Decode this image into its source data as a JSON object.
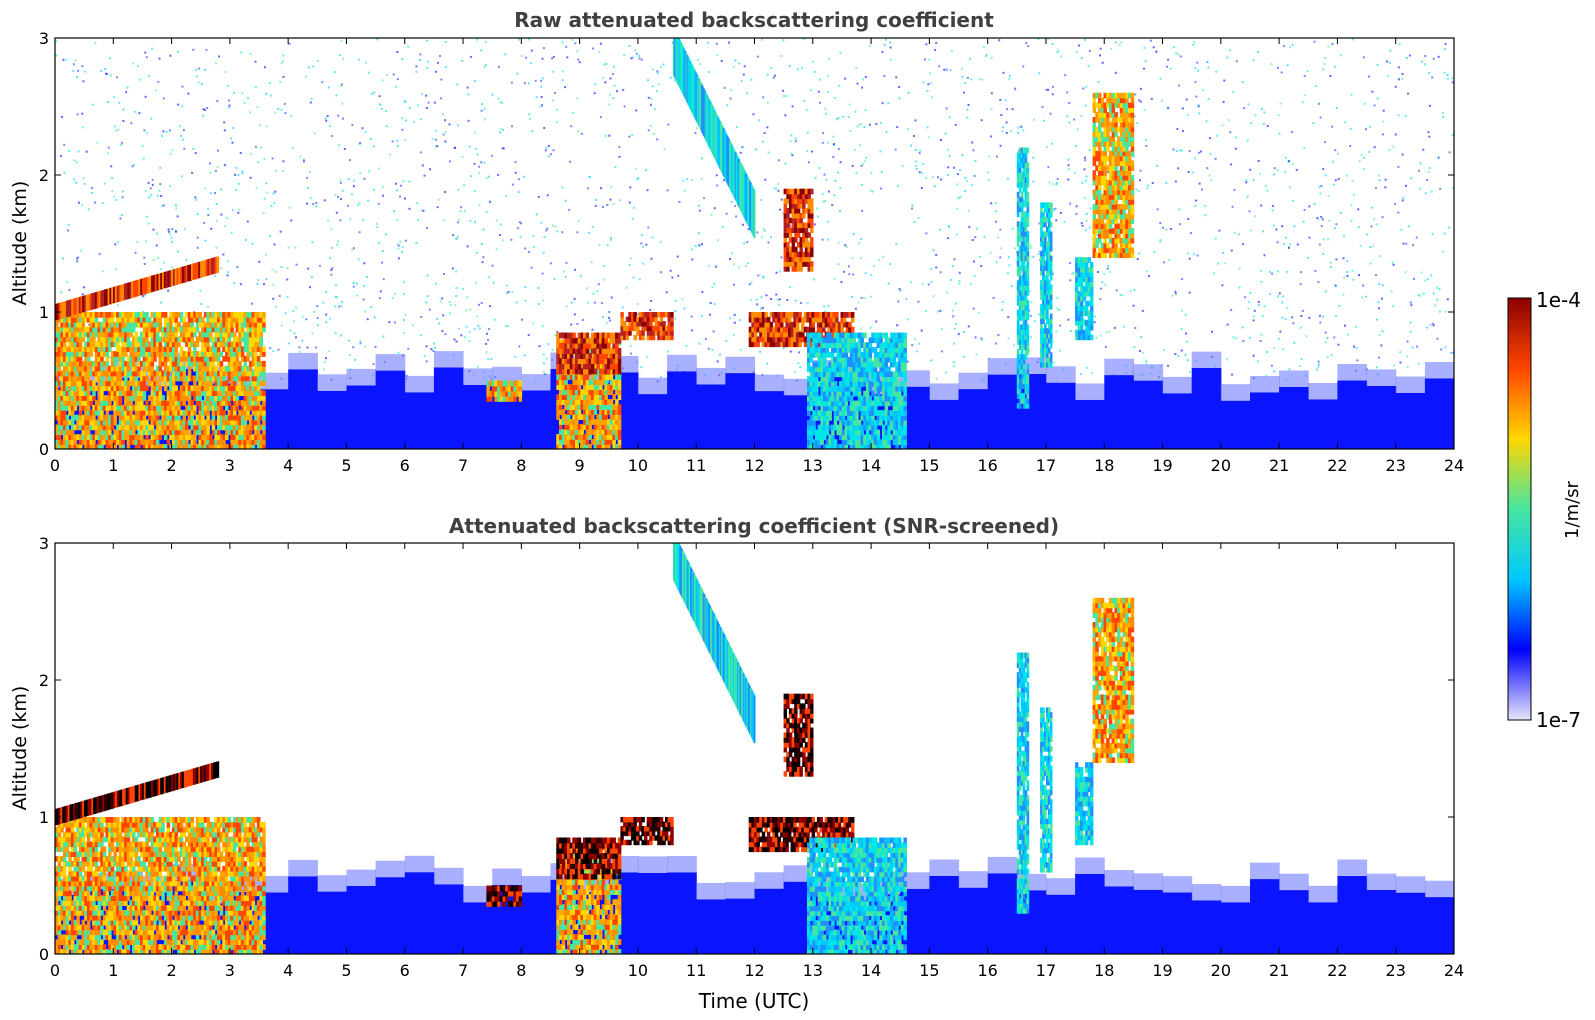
{
  "chart_data": [
    {
      "type": "heatmap",
      "title": "Raw attenuated backscattering coefficient",
      "xlabel": "",
      "ylabel": "Altitude (km)",
      "xlim": [
        0,
        24
      ],
      "ylim": [
        0,
        3
      ],
      "x_ticks": [
        "0",
        "1",
        "2",
        "3",
        "4",
        "5",
        "6",
        "7",
        "8",
        "9",
        "10",
        "11",
        "12",
        "13",
        "14",
        "15",
        "16",
        "17",
        "18",
        "19",
        "20",
        "21",
        "22",
        "23",
        "24"
      ],
      "y_ticks": [
        "0",
        "1",
        "2",
        "3"
      ],
      "background_noise": true,
      "boundary_layer_top_km": 0.5,
      "features": [
        {
          "kind": "aerosol_layer",
          "t": [
            0.0,
            3.6
          ],
          "z": [
            0.0,
            1.0
          ],
          "intensity": "high"
        },
        {
          "kind": "cloud_edge",
          "t": [
            0.0,
            2.8
          ],
          "z_start": 1.0,
          "z_end": 1.35,
          "intensity": "very_high"
        },
        {
          "kind": "cloud",
          "t": [
            7.4,
            8.0
          ],
          "z": [
            0.35,
            0.5
          ],
          "intensity": "high"
        },
        {
          "kind": "aerosol_column",
          "t": [
            8.6,
            9.7
          ],
          "z": [
            0.0,
            0.8
          ],
          "intensity": "high"
        },
        {
          "kind": "cloud",
          "t": [
            8.6,
            9.7
          ],
          "z": [
            0.55,
            0.85
          ],
          "intensity": "very_high"
        },
        {
          "kind": "cloud",
          "t": [
            9.7,
            10.6
          ],
          "z": [
            0.8,
            1.0
          ],
          "intensity": "very_high"
        },
        {
          "kind": "virga",
          "t": [
            10.6,
            12.0
          ],
          "z_start": 2.9,
          "z_end": 1.7,
          "intensity": "medium"
        },
        {
          "kind": "cloud",
          "t": [
            11.9,
            13.7
          ],
          "z": [
            0.75,
            1.0
          ],
          "intensity": "very_high"
        },
        {
          "kind": "cloud",
          "t": [
            12.5,
            13.0
          ],
          "z": [
            1.3,
            1.9
          ],
          "intensity": "very_high"
        },
        {
          "kind": "aerosol_column",
          "t": [
            12.9,
            14.6
          ],
          "z": [
            0.0,
            0.85
          ],
          "intensity": "medium"
        },
        {
          "kind": "plume",
          "t": [
            16.5,
            16.7
          ],
          "z": [
            0.3,
            2.2
          ],
          "intensity": "medium"
        },
        {
          "kind": "plume",
          "t": [
            16.9,
            17.1
          ],
          "z": [
            0.6,
            1.8
          ],
          "intensity": "medium"
        },
        {
          "kind": "plume",
          "t": [
            17.5,
            17.8
          ],
          "z": [
            0.8,
            1.4
          ],
          "intensity": "medium"
        },
        {
          "kind": "cloud",
          "t": [
            17.8,
            18.5
          ],
          "z": [
            1.4,
            2.6
          ],
          "intensity": "high"
        }
      ]
    },
    {
      "type": "heatmap",
      "title": "Attenuated backscattering coefficient (SNR-screened)",
      "xlabel": "Time (UTC)",
      "ylabel": "Altitude (km)",
      "xlim": [
        0,
        24
      ],
      "ylim": [
        0,
        3
      ],
      "x_ticks": [
        "0",
        "1",
        "2",
        "3",
        "4",
        "5",
        "6",
        "7",
        "8",
        "9",
        "10",
        "11",
        "12",
        "13",
        "14",
        "15",
        "16",
        "17",
        "18",
        "19",
        "20",
        "21",
        "22",
        "23",
        "24"
      ],
      "y_ticks": [
        "0",
        "1",
        "2",
        "3"
      ],
      "background_noise": false,
      "boundary_layer_top_km": 0.5,
      "features": [
        {
          "kind": "aerosol_layer",
          "t": [
            0.0,
            3.6
          ],
          "z": [
            0.0,
            1.0
          ],
          "intensity": "high"
        },
        {
          "kind": "cloud_edge",
          "t": [
            0.0,
            2.8
          ],
          "z_start": 1.0,
          "z_end": 1.35,
          "intensity": "saturated"
        },
        {
          "kind": "cloud",
          "t": [
            7.4,
            8.0
          ],
          "z": [
            0.35,
            0.5
          ],
          "intensity": "saturated"
        },
        {
          "kind": "aerosol_column",
          "t": [
            8.6,
            9.7
          ],
          "z": [
            0.0,
            0.8
          ],
          "intensity": "high"
        },
        {
          "kind": "cloud",
          "t": [
            8.6,
            9.7
          ],
          "z": [
            0.55,
            0.85
          ],
          "intensity": "saturated"
        },
        {
          "kind": "cloud",
          "t": [
            9.7,
            10.6
          ],
          "z": [
            0.8,
            1.0
          ],
          "intensity": "saturated"
        },
        {
          "kind": "virga",
          "t": [
            10.6,
            12.0
          ],
          "z_start": 2.9,
          "z_end": 1.7,
          "intensity": "medium"
        },
        {
          "kind": "cloud",
          "t": [
            11.9,
            13.7
          ],
          "z": [
            0.75,
            1.0
          ],
          "intensity": "saturated"
        },
        {
          "kind": "cloud",
          "t": [
            12.5,
            13.0
          ],
          "z": [
            1.3,
            1.9
          ],
          "intensity": "saturated"
        },
        {
          "kind": "aerosol_column",
          "t": [
            12.9,
            14.6
          ],
          "z": [
            0.0,
            0.85
          ],
          "intensity": "medium"
        },
        {
          "kind": "plume",
          "t": [
            16.5,
            16.7
          ],
          "z": [
            0.3,
            2.2
          ],
          "intensity": "medium"
        },
        {
          "kind": "plume",
          "t": [
            16.9,
            17.1
          ],
          "z": [
            0.6,
            1.8
          ],
          "intensity": "medium"
        },
        {
          "kind": "plume",
          "t": [
            17.5,
            17.8
          ],
          "z": [
            0.8,
            1.4
          ],
          "intensity": "medium"
        },
        {
          "kind": "cloud",
          "t": [
            17.8,
            18.5
          ],
          "z": [
            1.4,
            2.6
          ],
          "intensity": "high"
        }
      ]
    }
  ],
  "colorbar": {
    "label": "1/m/sr",
    "max_label": "1e-4",
    "min_label": "1e-7",
    "scale": "log",
    "range": [
      1e-07,
      0.0001
    ],
    "colormap": [
      "#e6e6f8",
      "#0000ff",
      "#00c8ff",
      "#46e6a0",
      "#ffd700",
      "#ff4500",
      "#8b0000"
    ]
  },
  "colors": {
    "title": "#404040",
    "axes": "#000000"
  }
}
